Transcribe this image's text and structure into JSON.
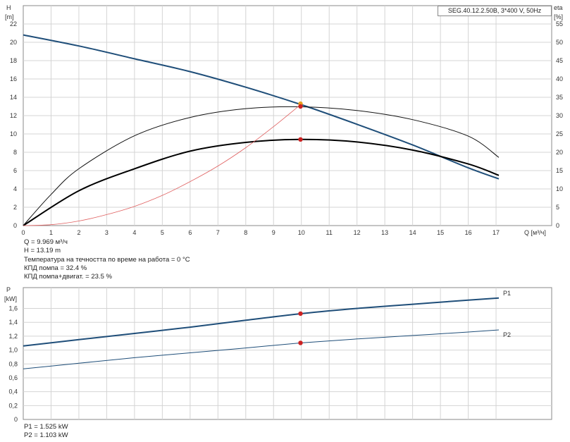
{
  "model_label": "SEG.40.12.2.50B, 3*400 V, 50Hz",
  "chart_data": [
    {
      "type": "line",
      "id": "performance",
      "ylabel": "H",
      "yunit": "[m]",
      "y2label": "eta",
      "y2unit": "[%]",
      "xlabel": "Q [м³/ч]",
      "xlim": [
        0,
        19
      ],
      "ylim": [
        0,
        24
      ],
      "y2lim": [
        0,
        60
      ],
      "xticks": [
        0,
        1,
        2,
        3,
        4,
        5,
        6,
        7,
        8,
        9,
        10,
        11,
        12,
        13,
        14,
        15,
        16,
        17
      ],
      "yticks": [
        0,
        2,
        4,
        6,
        8,
        10,
        12,
        14,
        16,
        18,
        20,
        22
      ],
      "y2ticks": [
        0,
        5,
        10,
        15,
        20,
        25,
        30,
        35,
        40,
        45,
        50,
        55
      ],
      "grid": true,
      "series": [
        {
          "axis": "left",
          "color": "#1f4e79",
          "width": 2,
          "x": [
            0,
            2,
            4,
            6,
            8,
            10,
            12,
            14,
            16,
            17.1
          ],
          "y": [
            20.8,
            19.6,
            18.2,
            16.8,
            15.1,
            13.19,
            11.05,
            8.8,
            6.3,
            5.1
          ]
        },
        {
          "axis": "right",
          "color": "#111111",
          "width": 1,
          "x": [
            0,
            1,
            2,
            4,
            6,
            8,
            10,
            12,
            14,
            16,
            17.1
          ],
          "y": [
            0,
            8.5,
            15.5,
            24.5,
            29.5,
            31.9,
            32.4,
            31.4,
            28.9,
            24.4,
            18.6
          ]
        },
        {
          "axis": "right",
          "color": "#000000",
          "width": 2,
          "x": [
            0,
            2,
            4,
            6,
            8,
            10,
            12,
            14,
            16,
            17.1
          ],
          "y": [
            0,
            9.5,
            15.5,
            20.3,
            22.7,
            23.5,
            22.8,
            20.6,
            16.8,
            13.7
          ]
        },
        {
          "axis": "left",
          "color": "#e06060",
          "width": 0.8,
          "x": [
            0,
            1,
            2,
            3,
            4,
            5,
            6,
            7,
            8,
            9,
            9.969
          ],
          "y": [
            0,
            0.1,
            0.5,
            1.2,
            2.1,
            3.3,
            4.8,
            6.5,
            8.5,
            10.8,
            13.19
          ]
        }
      ],
      "markers": [
        {
          "axis": "left",
          "x": 9.969,
          "y": 13.3,
          "color": "#e8a020"
        },
        {
          "axis": "left",
          "x": 9.969,
          "y": 13.0,
          "color": "#cc2222"
        },
        {
          "axis": "right",
          "x": 9.969,
          "y": 23.5,
          "color": "#cc2222"
        }
      ]
    },
    {
      "type": "line",
      "id": "power",
      "ylabel": "P",
      "yunit": "[kW]",
      "xlim": [
        0,
        19
      ],
      "ylim": [
        0,
        1.9
      ],
      "yticks": [
        0,
        0.2,
        0.4,
        0.6,
        0.8,
        1.0,
        1.2,
        1.4,
        1.6
      ],
      "ytick_labels": [
        "0",
        "0,2",
        "0,4",
        "0,6",
        "0,8",
        "1,0",
        "1,2",
        "1,4",
        "1,6"
      ],
      "xticks": [
        0,
        1,
        2,
        3,
        4,
        5,
        6,
        7,
        8,
        9,
        10,
        11,
        12,
        13,
        14,
        15,
        16,
        17
      ],
      "grid": true,
      "series": [
        {
          "name": "P1",
          "color": "#1f4e79",
          "width": 2,
          "x": [
            0,
            2,
            4,
            6,
            8,
            10,
            12,
            14,
            16,
            17.1
          ],
          "y": [
            1.06,
            1.15,
            1.24,
            1.33,
            1.43,
            1.525,
            1.6,
            1.66,
            1.72,
            1.75
          ]
        },
        {
          "name": "P2",
          "color": "#1f4e79",
          "width": 1,
          "x": [
            0,
            2,
            4,
            6,
            8,
            10,
            12,
            14,
            16,
            17.1
          ],
          "y": [
            0.73,
            0.81,
            0.89,
            0.96,
            1.03,
            1.103,
            1.16,
            1.21,
            1.26,
            1.29
          ]
        }
      ],
      "markers": [
        {
          "x": 9.969,
          "y": 1.525,
          "color": "#cc2222"
        },
        {
          "x": 9.969,
          "y": 1.103,
          "color": "#cc2222"
        }
      ]
    }
  ],
  "info_lines": [
    "Q = 9.969 м³/ч",
    "H = 13.19 m",
    "Температура на течността по време на работа = 0 °C",
    "КПД помпа = 32.4 %",
    "КПД помпа+двигат. = 23.5 %"
  ],
  "power_lines": [
    "P1 = 1.525 kW",
    "P2 = 1.103 kW"
  ]
}
